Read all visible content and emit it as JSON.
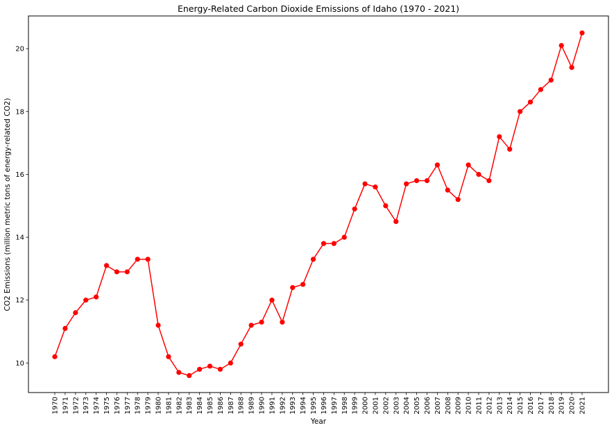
{
  "chart_data": {
    "type": "line",
    "title": "Energy-Related Carbon Dioxide Emissions of Idaho (1970 - 2021)",
    "xlabel": "Year",
    "ylabel": "CO2 Emissions (million metric tons of energy-related CO2)",
    "x": [
      1970,
      1971,
      1972,
      1973,
      1974,
      1975,
      1976,
      1977,
      1978,
      1979,
      1980,
      1981,
      1982,
      1983,
      1984,
      1985,
      1986,
      1987,
      1988,
      1989,
      1990,
      1991,
      1992,
      1993,
      1994,
      1995,
      1996,
      1997,
      1998,
      1999,
      2000,
      2001,
      2002,
      2003,
      2004,
      2005,
      2006,
      2007,
      2008,
      2009,
      2010,
      2011,
      2012,
      2013,
      2014,
      2015,
      2016,
      2017,
      2018,
      2019,
      2020,
      2021
    ],
    "series": [
      {
        "values": [
          10.2,
          11.1,
          11.6,
          12.0,
          12.1,
          13.1,
          12.9,
          12.9,
          13.3,
          13.3,
          11.2,
          10.2,
          9.7,
          9.6,
          9.8,
          9.9,
          9.8,
          10.0,
          10.6,
          11.2,
          11.3,
          12.0,
          11.3,
          12.4,
          12.5,
          13.3,
          13.8,
          13.8,
          14.0,
          14.9,
          15.7,
          15.6,
          15.0,
          14.5,
          15.7,
          15.8,
          15.8,
          16.3,
          15.5,
          15.2,
          16.3,
          16.0,
          15.8,
          17.2,
          16.8,
          18.0,
          18.3,
          18.7,
          19.0,
          20.1,
          19.4,
          20.5
        ],
        "color": "#ff0000"
      }
    ],
    "yticks": [
      10,
      12,
      14,
      16,
      18,
      20
    ],
    "ylim": [
      9.06,
      21.04
    ],
    "xlim": [
      1967.45,
      2023.55
    ],
    "grid": false,
    "legend": "none"
  }
}
